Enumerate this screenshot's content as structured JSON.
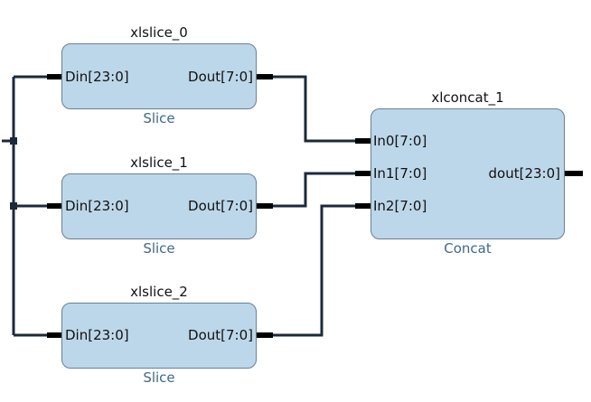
{
  "blocks": [
    {
      "name": "xlslice_0",
      "type": "Slice",
      "in": "Din[23:0]",
      "out": "Dout[7:0]"
    },
    {
      "name": "xlslice_1",
      "type": "Slice",
      "in": "Din[23:0]",
      "out": "Dout[7:0]"
    },
    {
      "name": "xlslice_2",
      "type": "Slice",
      "in": "Din[23:0]",
      "out": "Dout[7:0]"
    }
  ],
  "concat": {
    "name": "xlconcat_1",
    "type": "Concat",
    "inputs": [
      "In0[7:0]",
      "In1[7:0]",
      "In2[7:0]"
    ],
    "out": "dout[23:0]"
  },
  "colors": {
    "block_fill": "#bdd7ea",
    "wire": "#1b2a3a",
    "pin": "#000000",
    "type_label": "#3d6a8c"
  }
}
